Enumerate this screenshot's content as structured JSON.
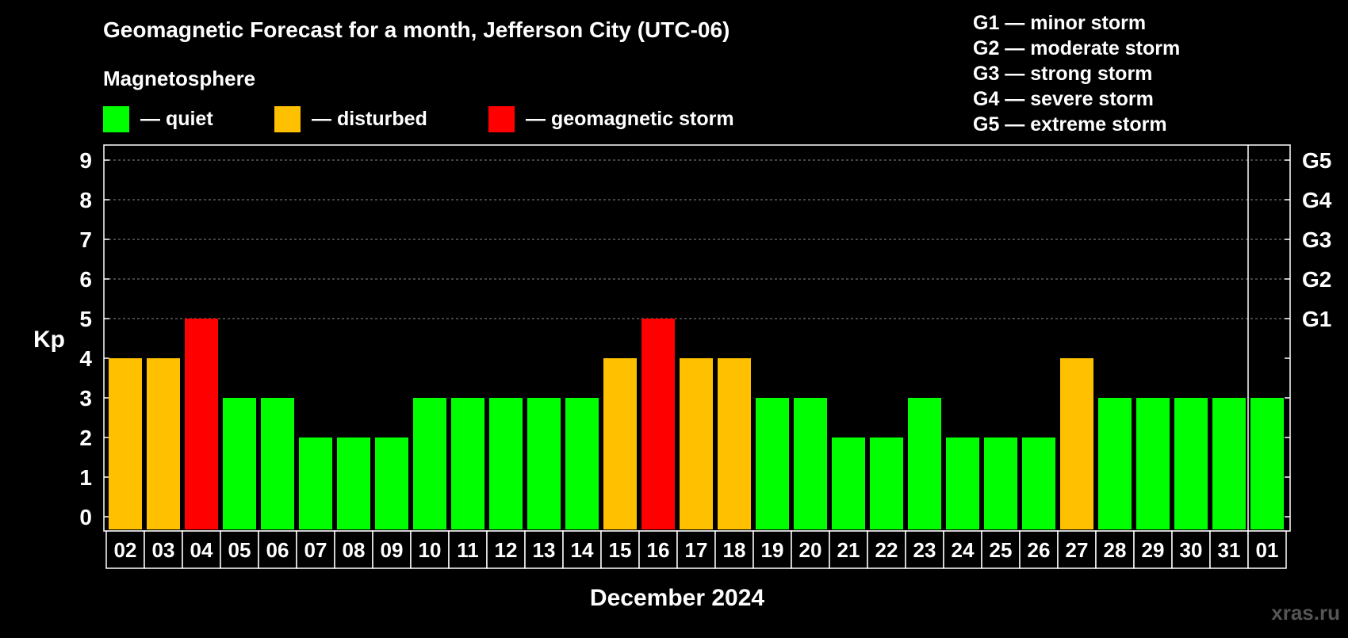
{
  "title": "Geomagnetic Forecast for a month, Jefferson City (UTC-06)",
  "legend": {
    "heading": "Magnetosphere",
    "items": [
      {
        "label": "— quiet",
        "color": "#00ff00"
      },
      {
        "label": "— disturbed",
        "color": "#ffc000"
      },
      {
        "label": "— geomagnetic storm",
        "color": "#ff0000"
      }
    ]
  },
  "storm_scale": [
    "G1 — minor storm",
    "G2 — moderate storm",
    "G3 — strong storm",
    "G4 — severe storm",
    "G5 — extreme storm"
  ],
  "watermark": "xras.ru",
  "chart_data": {
    "type": "bar",
    "title": "Geomagnetic Forecast for a month, Jefferson City (UTC-06)",
    "xlabel": "December 2024",
    "ylabel": "Kp",
    "ylim": [
      0,
      9
    ],
    "yticks": [
      "0",
      "1",
      "2",
      "3",
      "4",
      "5",
      "6",
      "7",
      "8",
      "9"
    ],
    "right_ticks": [
      {
        "kp": 5,
        "label": "G1"
      },
      {
        "kp": 6,
        "label": "G2"
      },
      {
        "kp": 7,
        "label": "G3"
      },
      {
        "kp": 8,
        "label": "G4"
      },
      {
        "kp": 9,
        "label": "G5"
      }
    ],
    "grid": "dashed at Kp 5-9",
    "month_separator_after": "31",
    "categories": [
      "02",
      "03",
      "04",
      "05",
      "06",
      "07",
      "08",
      "09",
      "10",
      "11",
      "12",
      "13",
      "14",
      "15",
      "16",
      "17",
      "18",
      "19",
      "20",
      "21",
      "22",
      "23",
      "24",
      "25",
      "26",
      "27",
      "28",
      "29",
      "30",
      "31",
      "01"
    ],
    "values": [
      4,
      4,
      5,
      3,
      3,
      2,
      2,
      2,
      3,
      3,
      3,
      3,
      3,
      4,
      5,
      4,
      4,
      3,
      3,
      2,
      2,
      3,
      2,
      2,
      2,
      4,
      3,
      3,
      3,
      3,
      3
    ],
    "colors": {
      "quiet": "#00ff00",
      "disturbed": "#ffc000",
      "storm": "#ff0000"
    }
  }
}
